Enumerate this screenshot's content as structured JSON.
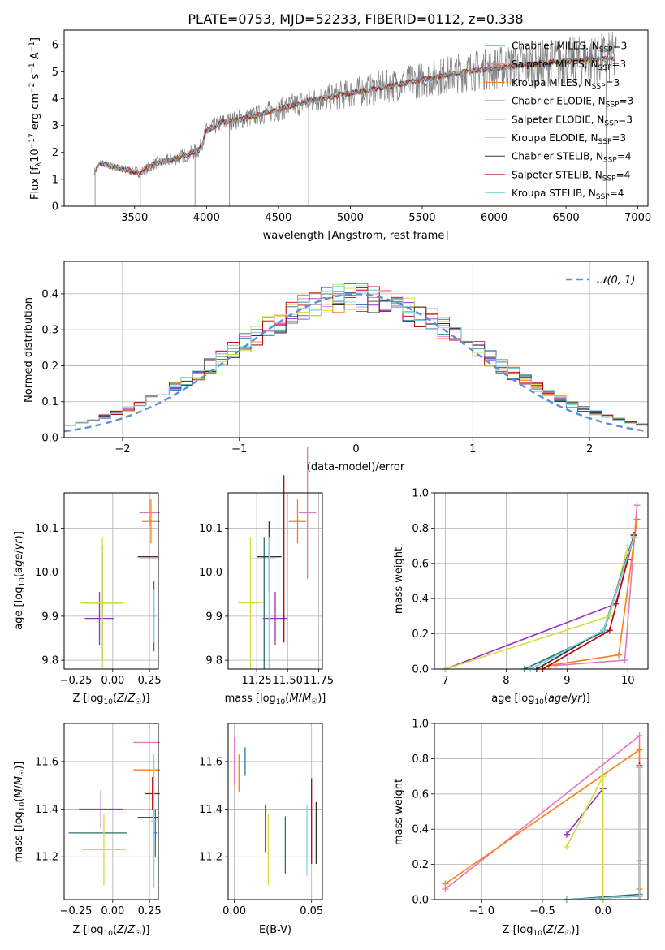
{
  "figure_title": "PLATE=0753, MJD=52233, FIBERID=0112, z=0.338",
  "series_styles": [
    {
      "label": "Chabrier MILES",
      "nssp": "3",
      "color": "#1f77b4"
    },
    {
      "label": "Salpeter MILES",
      "nssp": "3",
      "color": "#e377c2"
    },
    {
      "label": "Kroupa MILES",
      "nssp": "3",
      "color": "#ff7f0e"
    },
    {
      "label": "Chabrier ELODIE",
      "nssp": "3",
      "color": "#2f6f6f"
    },
    {
      "label": "Salpeter ELODIE",
      "nssp": "3",
      "color": "#9b30c0"
    },
    {
      "label": "Kroupa ELODIE",
      "nssp": "3",
      "color": "#d4dc3c"
    },
    {
      "label": "Chabrier STELIB",
      "nssp": "4",
      "color": "#333333"
    },
    {
      "label": "Salpeter STELIB",
      "nssp": "4",
      "color": "#c00000"
    },
    {
      "label": "Kroupa STELIB",
      "nssp": "4",
      "color": "#7fd6e0"
    }
  ],
  "chart_data": [
    {
      "id": "spectrum",
      "type": "line",
      "xlabel": "wavelength [Angstrom, rest frame]",
      "ylabel": "Flux [f_λ 10^-17 erg cm^-2 s^-1 A^-1]",
      "xlim": [
        3010,
        7070
      ],
      "ylim": [
        0,
        6.55
      ],
      "xticks": [
        3500,
        4000,
        4500,
        5000,
        5500,
        6000,
        6500,
        7000
      ],
      "yticks": [
        0,
        1,
        2,
        3,
        4,
        5,
        6
      ],
      "data_range": [
        3220,
        6850
      ],
      "data_color": "#808080",
      "continuum": {
        "x": [
          3220,
          3260,
          3400,
          3540,
          3650,
          3800,
          3950,
          4000,
          4100,
          4300,
          4500,
          4700,
          4900,
          5200,
          5500,
          5800,
          6100,
          6400,
          6700,
          6850
        ],
        "y": [
          1.3,
          1.6,
          1.4,
          1.25,
          1.6,
          1.8,
          2.1,
          2.8,
          3.1,
          3.3,
          3.6,
          3.9,
          4.1,
          4.4,
          4.7,
          5.0,
          5.2,
          5.35,
          5.45,
          5.5
        ]
      },
      "legend": "top-right"
    },
    {
      "id": "residuals",
      "type": "step",
      "xlabel": "(data-model)/error",
      "ylabel": "Normed distribution",
      "xlim": [
        -2.5,
        2.5
      ],
      "ylim": [
        0,
        0.49
      ],
      "xticks": [
        -2,
        -1,
        0,
        1,
        2
      ],
      "yticks": [
        0.0,
        0.1,
        0.2,
        0.3,
        0.4
      ],
      "bin_start": -2.5,
      "bin_width": 0.1,
      "normal_label": "𝒩(0, 1)",
      "normal_color": "#5b8fd9",
      "legend": "top-right",
      "grid": true
    },
    {
      "id": "age_vs_Z",
      "type": "errorbar",
      "xlabel": "Z [log10(Z/Z☉)]",
      "ylabel": "age  [log10(age/yr)]",
      "xlim": [
        -0.33,
        0.31
      ],
      "ylim": [
        9.78,
        10.18
      ],
      "xticks": [
        -0.25,
        0.0,
        0.25
      ],
      "yticks": [
        9.8,
        9.9,
        10.0,
        10.1
      ],
      "points": [
        {
          "s": 0,
          "x": 0.28,
          "y": 9.9,
          "xerr": 0.01,
          "yerr": 0.08
        },
        {
          "s": 1,
          "x": 0.25,
          "y": 10.135,
          "xerr": 0.07,
          "yerr": 0.03
        },
        {
          "s": 2,
          "x": 0.26,
          "y": 10.115,
          "xerr": 0.06,
          "yerr": 0.05
        },
        {
          "s": 3,
          "x": -0.07,
          "y": 9.93,
          "xerr": 0.13,
          "yerr": 0.13
        },
        {
          "s": 4,
          "x": -0.09,
          "y": 9.895,
          "xerr": 0.1,
          "yerr": 0.06
        },
        {
          "s": 5,
          "x": -0.07,
          "y": 9.93,
          "xerr": 0.15,
          "yerr": 0.15
        },
        {
          "s": 6,
          "x": 0.24,
          "y": 10.035,
          "xerr": 0.07,
          "yerr": 0.0
        },
        {
          "s": 7,
          "x": 0.25,
          "y": 10.03,
          "xerr": 0.06,
          "yerr": 0.0
        },
        {
          "s": 8,
          "x": 0.28,
          "y": 9.9,
          "xerr": 0.01,
          "yerr": 0.06
        }
      ]
    },
    {
      "id": "age_vs_mass",
      "type": "errorbar",
      "xlabel": "mass [log10(M/M☉)]",
      "ylabel": "",
      "xlim": [
        11.02,
        11.78
      ],
      "ylim": [
        9.78,
        10.18
      ],
      "xticks": [
        11.25,
        11.5,
        11.75
      ],
      "yticks": [
        9.8,
        9.9,
        10.0,
        10.1
      ],
      "points": [
        {
          "s": 0,
          "x": 11.3,
          "y": 10.03,
          "xerr": 0.1,
          "yerr": 0.0
        },
        {
          "s": 1,
          "x": 11.66,
          "y": 10.135,
          "xerr": 0.07,
          "yerr": 0.15
        },
        {
          "s": 2,
          "x": 11.58,
          "y": 10.115,
          "xerr": 0.07,
          "yerr": 0.05
        },
        {
          "s": 3,
          "x": 11.31,
          "y": 9.93,
          "xerr": 0.0,
          "yerr": 0.15
        },
        {
          "s": 4,
          "x": 11.4,
          "y": 9.895,
          "xerr": 0.1,
          "yerr": 0.06
        },
        {
          "s": 5,
          "x": 11.2,
          "y": 9.93,
          "xerr": 0.1,
          "yerr": 0.15
        },
        {
          "s": 6,
          "x": 11.35,
          "y": 10.035,
          "xerr": 0.1,
          "yerr": 0.08
        },
        {
          "s": 7,
          "x": 11.47,
          "y": 10.03,
          "xerr": 0.0,
          "yerr": 0.19
        },
        {
          "s": 8,
          "x": 11.35,
          "y": 9.93,
          "xerr": 0.0,
          "yerr": 0.15
        }
      ]
    },
    {
      "id": "massweight_vs_age",
      "type": "line",
      "xlabel": "age  [log10(age/yr)]",
      "ylabel": "mass weight",
      "xlim": [
        6.82,
        10.33
      ],
      "ylim": [
        0,
        1.0
      ],
      "xticks": [
        7,
        8,
        9,
        10
      ],
      "yticks": [
        0.0,
        0.2,
        0.4,
        0.6,
        0.8,
        1.0
      ],
      "grid": true,
      "series": [
        {
          "s": 0,
          "x": [
            8.4,
            9.6,
            10.1
          ],
          "y": [
            0.0,
            0.22,
            0.76
          ]
        },
        {
          "s": 1,
          "x": [
            8.8,
            9.95,
            10.15
          ],
          "y": [
            0.02,
            0.05,
            0.93
          ]
        },
        {
          "s": 2,
          "x": [
            8.7,
            9.85,
            10.15
          ],
          "y": [
            0.02,
            0.08,
            0.85
          ]
        },
        {
          "s": 3,
          "x": [
            8.3,
            9.6,
            10.1
          ],
          "y": [
            0.0,
            0.21,
            0.75
          ]
        },
        {
          "s": 4,
          "x": [
            7.0,
            9.8,
            10.0
          ],
          "y": [
            0.0,
            0.37,
            0.62
          ]
        },
        {
          "s": 5,
          "x": [
            7.0,
            9.7,
            10.0
          ],
          "y": [
            0.0,
            0.3,
            0.7
          ]
        },
        {
          "s": 6,
          "x": [
            8.5,
            9.6,
            10.1
          ],
          "y": [
            0.0,
            0.22,
            0.76
          ]
        },
        {
          "s": 7,
          "x": [
            8.6,
            9.7,
            10.1
          ],
          "y": [
            0.0,
            0.22,
            0.76
          ]
        },
        {
          "s": 8,
          "x": [
            8.4,
            9.6,
            10.1
          ],
          "y": [
            0.0,
            0.22,
            0.75
          ]
        }
      ]
    },
    {
      "id": "mass_vs_Z",
      "type": "errorbar",
      "xlabel": "Z [log10(Z/Z☉)]",
      "ylabel": "mass [log10(M/M☉)]",
      "xlim": [
        -0.33,
        0.31
      ],
      "ylim": [
        11.02,
        11.76
      ],
      "xticks": [
        -0.25,
        0.0,
        0.25
      ],
      "yticks": [
        11.2,
        11.4,
        11.6
      ],
      "points": [
        {
          "s": 0,
          "x": 0.29,
          "y": 11.3,
          "xerr": 0.01,
          "yerr": 0.1
        },
        {
          "s": 1,
          "x": 0.23,
          "y": 11.68,
          "xerr": 0.09,
          "yerr": 0.0
        },
        {
          "s": 2,
          "x": 0.23,
          "y": 11.565,
          "xerr": 0.09,
          "yerr": 0.0
        },
        {
          "s": 3,
          "x": -0.1,
          "y": 11.3,
          "xerr": 0.2,
          "yerr": 0.0
        },
        {
          "s": 4,
          "x": -0.08,
          "y": 11.4,
          "xerr": 0.15,
          "yerr": 0.08
        },
        {
          "s": 5,
          "x": -0.06,
          "y": 11.23,
          "xerr": 0.15,
          "yerr": 0.15
        },
        {
          "s": 6,
          "x": 0.24,
          "y": 11.365,
          "xerr": 0.07,
          "yerr": 0.0
        },
        {
          "s": 7,
          "x": 0.27,
          "y": 11.465,
          "xerr": 0.05,
          "yerr": 0.07
        },
        {
          "s": 8,
          "x": 0.28,
          "y": 11.35,
          "xerr": 0.02,
          "yerr": 0.28
        }
      ]
    },
    {
      "id": "mass_vs_EBV",
      "type": "errorbar",
      "xlabel": "E(B-V)",
      "ylabel": "",
      "xlim": [
        -0.004,
        0.057
      ],
      "ylim": [
        11.02,
        11.76
      ],
      "xticks": [
        0.0,
        0.05
      ],
      "yticks": [
        11.2,
        11.4,
        11.6
      ],
      "points": [
        {
          "s": 0,
          "x": 0.007,
          "y": 11.6,
          "xerr": 0.0,
          "yerr": 0.06
        },
        {
          "s": 1,
          "x": 0.0,
          "y": 11.6,
          "xerr": 0.0,
          "yerr": 0.1
        },
        {
          "s": 2,
          "x": 0.003,
          "y": 11.55,
          "xerr": 0.0,
          "yerr": 0.08
        },
        {
          "s": 3,
          "x": 0.033,
          "y": 11.25,
          "xerr": 0.0,
          "yerr": 0.12
        },
        {
          "s": 4,
          "x": 0.02,
          "y": 11.32,
          "xerr": 0.0,
          "yerr": 0.1
        },
        {
          "s": 5,
          "x": 0.022,
          "y": 11.23,
          "xerr": 0.0,
          "yerr": 0.15
        },
        {
          "s": 6,
          "x": 0.053,
          "y": 11.3,
          "xerr": 0.0,
          "yerr": 0.13
        },
        {
          "s": 7,
          "x": 0.05,
          "y": 11.35,
          "xerr": 0.0,
          "yerr": 0.18
        },
        {
          "s": 8,
          "x": 0.047,
          "y": 11.27,
          "xerr": 0.0,
          "yerr": 0.15
        }
      ]
    },
    {
      "id": "massweight_vs_Z",
      "type": "line",
      "xlabel": "Z [log10(Z/Z☉)]",
      "ylabel": "mass weight",
      "xlim": [
        -1.39,
        0.37
      ],
      "ylim": [
        0,
        1.0
      ],
      "xticks": [
        -1.0,
        -0.5,
        0.0
      ],
      "yticks": [
        0.0,
        0.2,
        0.4,
        0.6,
        0.8,
        1.0
      ],
      "grid": true,
      "series": [
        {
          "s": 0,
          "x": [
            -0.3,
            0.3,
            0.3
          ],
          "y": [
            0.0,
            0.02,
            0.76
          ]
        },
        {
          "s": 1,
          "x": [
            -1.3,
            0.3,
            0.3
          ],
          "y": [
            0.06,
            0.93,
            0.02
          ]
        },
        {
          "s": 2,
          "x": [
            -1.3,
            0.3,
            0.3
          ],
          "y": [
            0.09,
            0.85,
            0.06
          ]
        },
        {
          "s": 3,
          "x": [
            -0.3,
            0.3,
            0.3
          ],
          "y": [
            0.0,
            0.03,
            0.75
          ]
        },
        {
          "s": 4,
          "x": [
            -0.3,
            0.0,
            0.0
          ],
          "y": [
            0.37,
            0.63,
            0.0
          ]
        },
        {
          "s": 5,
          "x": [
            -0.3,
            0.0,
            0.0
          ],
          "y": [
            0.3,
            0.7,
            0.0
          ]
        },
        {
          "s": 6,
          "x": [
            -0.3,
            0.3,
            0.3
          ],
          "y": [
            0.0,
            0.02,
            0.22
          ]
        },
        {
          "s": 7,
          "x": [
            -0.3,
            0.3,
            0.3
          ],
          "y": [
            0.0,
            0.02,
            0.76
          ]
        },
        {
          "s": 8,
          "x": [
            -0.3,
            0.3,
            0.3
          ],
          "y": [
            0.0,
            0.02,
            0.75
          ]
        }
      ]
    }
  ]
}
